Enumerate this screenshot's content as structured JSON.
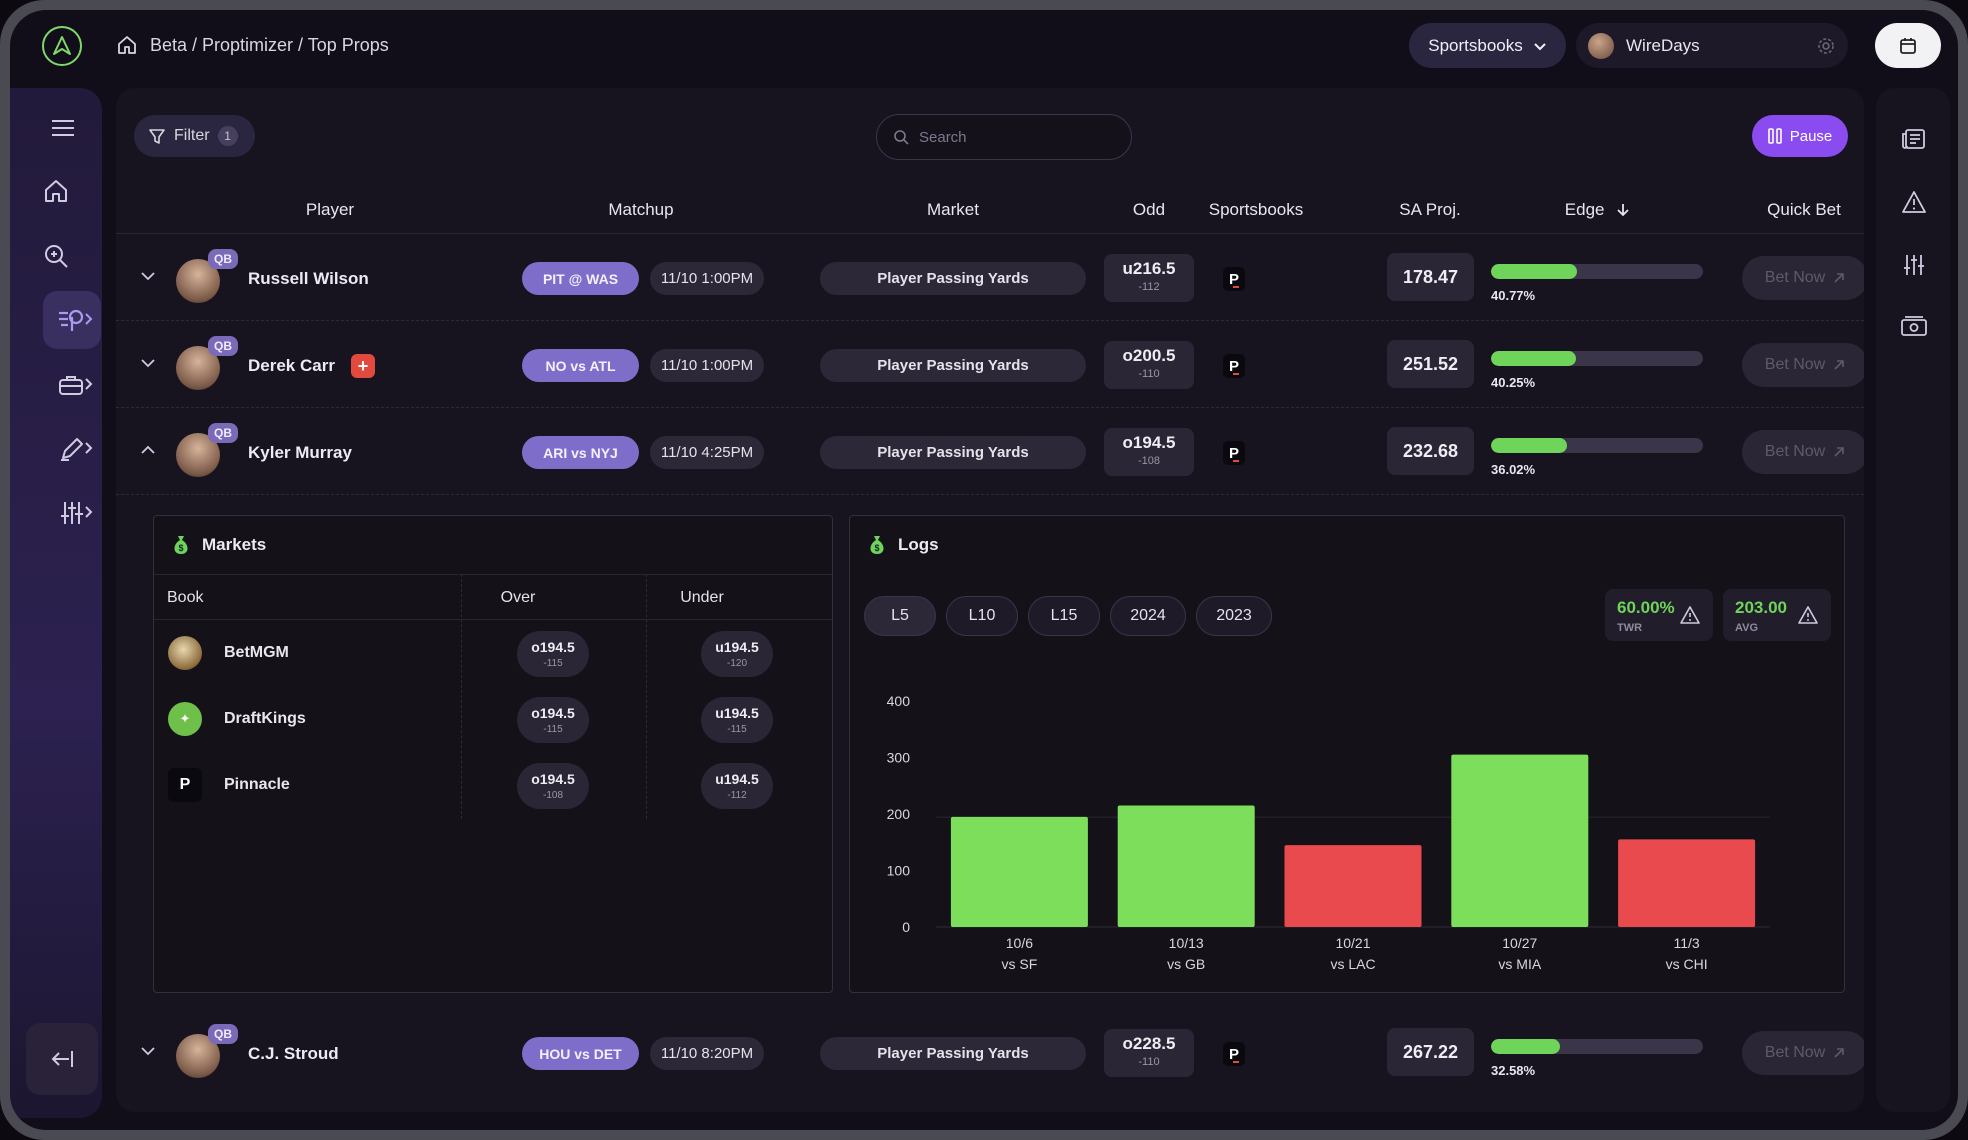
{
  "breadcrumb": {
    "path": "Beta / Proptimizer / Top Props"
  },
  "header": {
    "sportsbooks_label": "Sportsbooks",
    "user_name": "WireDays"
  },
  "toolbar": {
    "filter_label": "Filter",
    "filter_count": "1",
    "search_placeholder": "Search",
    "pause_label": "Pause"
  },
  "table": {
    "columns": [
      "Player",
      "Matchup",
      "Market",
      "Odd",
      "Sportsbooks",
      "SA Proj.",
      "Edge",
      "Quick Bet"
    ],
    "bet_label": "Bet Now",
    "rows": [
      {
        "position": "QB",
        "player": "Russell Wilson",
        "matchup": "PIT @ WAS",
        "time": "11/10 1:00PM",
        "market": "Player Passing Yards",
        "odd_line": "u216.5",
        "odd_price": "-112",
        "sportsbook": "P",
        "proj": "178.47",
        "edge": 40.77,
        "edge_label": "40.77%",
        "expanded": false,
        "injury": false
      },
      {
        "position": "QB",
        "player": "Derek Carr",
        "matchup": "NO vs ATL",
        "time": "11/10 1:00PM",
        "market": "Player Passing Yards",
        "odd_line": "o200.5",
        "odd_price": "-110",
        "sportsbook": "P",
        "proj": "251.52",
        "edge": 40.25,
        "edge_label": "40.25%",
        "expanded": false,
        "injury": true
      },
      {
        "position": "QB",
        "player": "Kyler Murray",
        "matchup": "ARI vs NYJ",
        "time": "11/10 4:25PM",
        "market": "Player Passing Yards",
        "odd_line": "o194.5",
        "odd_price": "-108",
        "sportsbook": "P",
        "proj": "232.68",
        "edge": 36.02,
        "edge_label": "36.02%",
        "expanded": true,
        "injury": false
      },
      {
        "position": "QB",
        "player": "C.J. Stroud",
        "matchup": "HOU vs DET",
        "time": "11/10 8:20PM",
        "market": "Player Passing Yards",
        "odd_line": "o228.5",
        "odd_price": "-110",
        "sportsbook": "P",
        "proj": "267.22",
        "edge": 32.58,
        "edge_label": "32.58%",
        "expanded": false,
        "injury": false
      }
    ]
  },
  "markets": {
    "title": "Markets",
    "columns": [
      "Book",
      "Over",
      "Under"
    ],
    "books": [
      {
        "name": "BetMGM",
        "over_line": "o194.5",
        "over_price": "-115",
        "under_line": "u194.5",
        "under_price": "-120"
      },
      {
        "name": "DraftKings",
        "over_line": "o194.5",
        "over_price": "-115",
        "under_line": "u194.5",
        "under_price": "-115"
      },
      {
        "name": "Pinnacle",
        "over_line": "o194.5",
        "over_price": "-108",
        "under_line": "u194.5",
        "under_price": "-112"
      }
    ]
  },
  "logs": {
    "title": "Logs",
    "tabs": [
      "L5",
      "L10",
      "L15",
      "2024",
      "2023"
    ],
    "selected_tab": "L5",
    "twr": {
      "value": "60.00%",
      "label": "TWR"
    },
    "avg": {
      "value": "203.00",
      "label": "AVG"
    }
  },
  "colors": {
    "accent": "#8a4cf0",
    "over": "#7dde5c",
    "under": "#e84a4e",
    "edge": "#6ed45a"
  },
  "chart_data": {
    "type": "bar",
    "categories": [
      "10/6 vs SF",
      "10/13 vs GB",
      "10/21 vs LAC",
      "10/27 vs MIA",
      "11/3 vs CHI"
    ],
    "dates": [
      "10/6",
      "10/13",
      "10/21",
      "10/27",
      "11/3"
    ],
    "opponents": [
      "vs SF",
      "vs GB",
      "vs LAC",
      "vs MIA",
      "vs CHI"
    ],
    "values": [
      195,
      215,
      145,
      305,
      155
    ],
    "hit": [
      true,
      true,
      false,
      true,
      false
    ],
    "line": 194.5,
    "ylim": [
      0,
      400
    ],
    "yticks": [
      0,
      100,
      200,
      300,
      400
    ],
    "grid": false
  }
}
